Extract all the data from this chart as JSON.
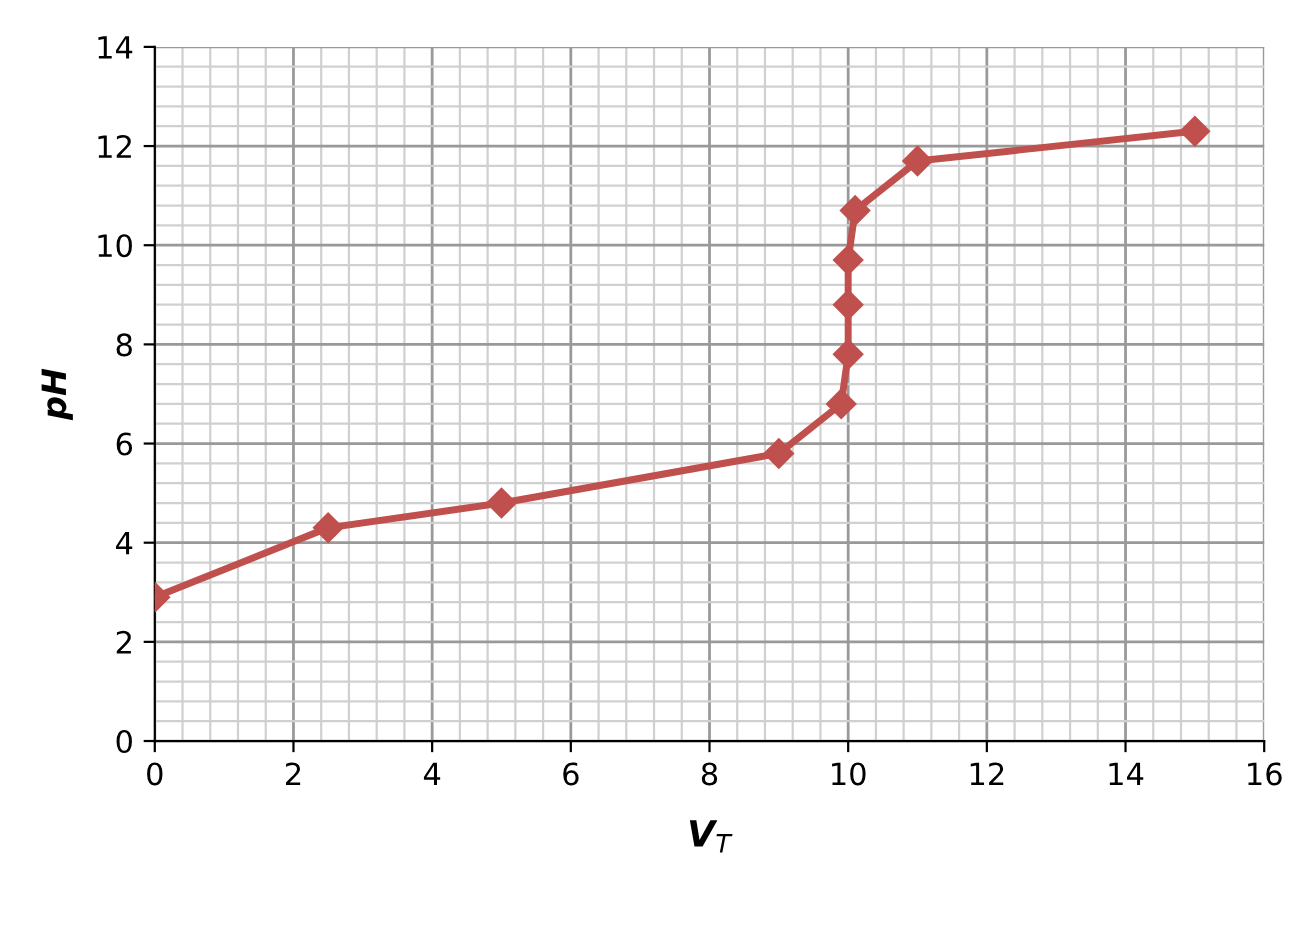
{
  "chart_data": {
    "type": "line",
    "xlabel": "V$_{T}$",
    "ylabel": "pH",
    "series": [
      {
        "color": "#c0504d",
        "x": [
          0,
          2.5,
          5,
          9,
          9.9,
          10,
          10,
          10,
          10.1,
          11,
          15
        ],
        "values": [
          2.9,
          4.3,
          4.8,
          5.8,
          6.8,
          7.8,
          8.8,
          9.7,
          10.7,
          11.7,
          12.3
        ]
      }
    ],
    "xlim": [
      0,
      16
    ],
    "ylim": [
      0,
      14
    ],
    "xticks": [
      0,
      2,
      4,
      6,
      8,
      10,
      12,
      14,
      16
    ],
    "yticks": [
      0,
      2,
      4,
      6,
      8,
      10,
      12,
      14
    ],
    "grid": true,
    "marker": "diamond",
    "line_style": "solid"
  }
}
